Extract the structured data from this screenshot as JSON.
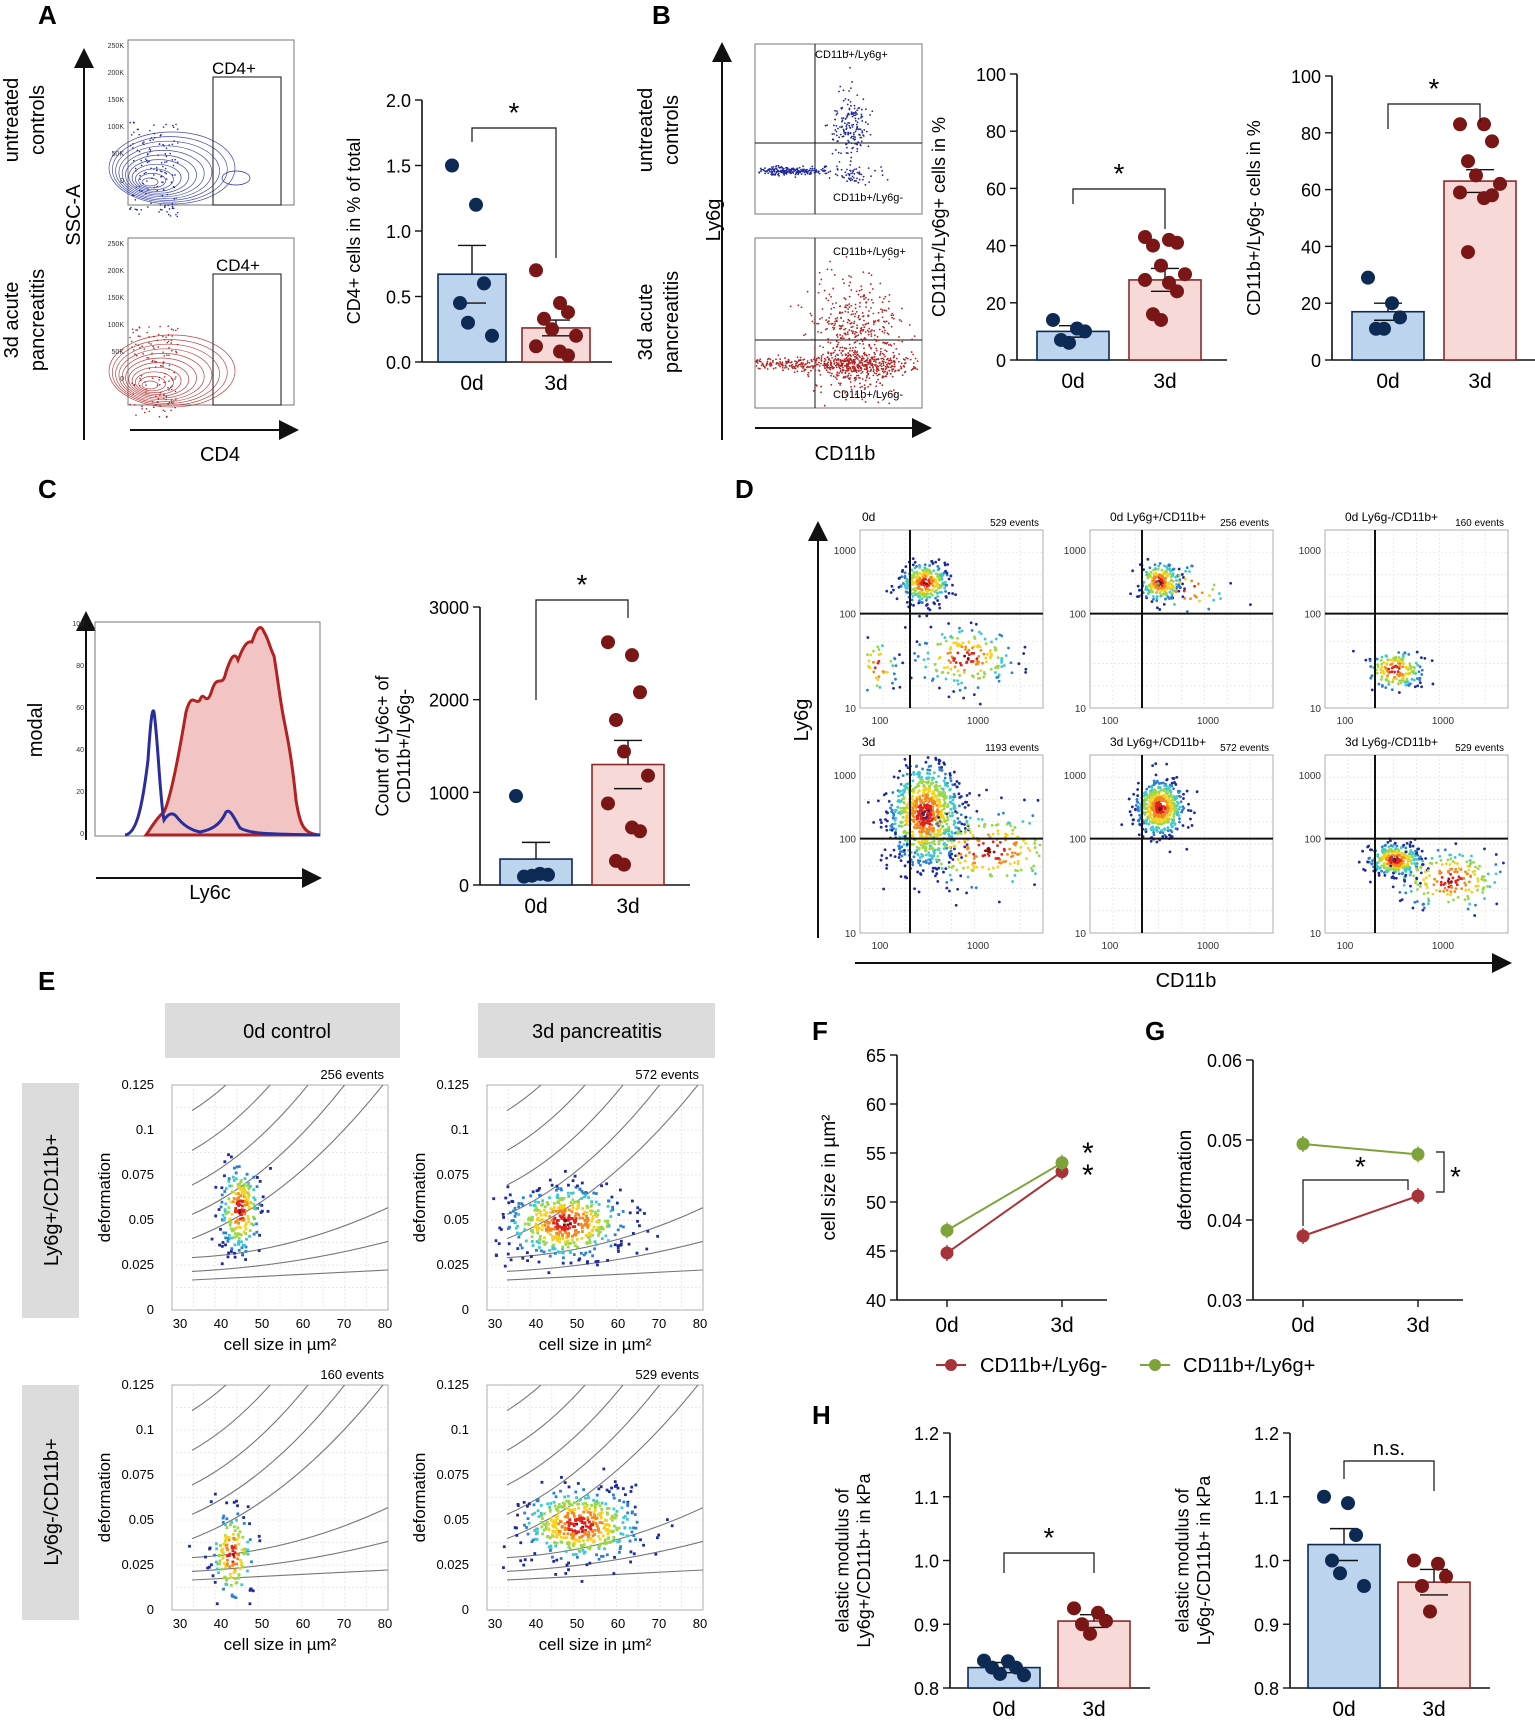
{
  "panels": {
    "A": {
      "letter": "A",
      "row_labels": [
        [
          "untreated",
          "controls"
        ],
        [
          "3d acute",
          "pancreatitis"
        ]
      ],
      "ylabel": "SSC-A",
      "xlabel": "CD4",
      "gate": "CD4+",
      "yticks": [
        "250K",
        "200K",
        "150K",
        "100K",
        "50K",
        "0"
      ]
    },
    "B": {
      "letter": "B",
      "row_labels": [
        [
          "untreated",
          "controls"
        ],
        [
          "3d acute",
          "pancreatitis"
        ]
      ],
      "ylabel": "Ly6g",
      "xlabel": "CD11b",
      "q_upper": "CD11b+/Ly6g+",
      "q_lower": "CD11b+/Ly6g-"
    },
    "C": {
      "letter": "C",
      "ylabel": "modal",
      "xlabel": "Ly6c",
      "yticks": [
        "100",
        "80",
        "60",
        "40",
        "20",
        "0"
      ]
    },
    "D": {
      "letter": "D",
      "ylabel": "Ly6g",
      "xlabel": "CD11b",
      "plots": [
        {
          "title": "0d",
          "events": "529 events"
        },
        {
          "title": "0d Ly6g+/CD11b+",
          "events": "256 events"
        },
        {
          "title": "0d Ly6g-/CD11b+",
          "events": "160 events"
        },
        {
          "title": "3d",
          "events": "1193 events"
        },
        {
          "title": "3d Ly6g+/CD11b+",
          "events": "572 events"
        },
        {
          "title": "3d Ly6g-/CD11b+",
          "events": "529 events"
        }
      ],
      "ticks": [
        "1000",
        "100",
        "10"
      ]
    },
    "E": {
      "letter": "E",
      "col_headers": [
        "0d control",
        "3d pancreatitis"
      ],
      "row_headers": [
        "Ly6g+/CD11b+",
        "Ly6g-/CD11b+"
      ],
      "xlabel": "cell size in µm²",
      "ylabel": "deformation",
      "events": [
        "256 events",
        "572 events",
        "160 events",
        "529 events"
      ],
      "xticks": [
        "30",
        "40",
        "50",
        "60",
        "70",
        "80"
      ],
      "yticks": [
        "0.125",
        "0.1",
        "0.075",
        "0.05",
        "0.025",
        "0"
      ]
    },
    "F": {
      "letter": "F"
    },
    "G": {
      "letter": "G"
    },
    "H": {
      "letter": "H"
    }
  },
  "legend": {
    "ly6g_neg": "CD11b+/Ly6g-",
    "ly6g_pos": "CD11b+/Ly6g+"
  },
  "colors": {
    "blue_fill": "#bcd4ee",
    "blue_dot": "#0d2a55",
    "red_fill": "#f7dad8",
    "red_dot": "#7a1616",
    "bar_edge_red": "#8b2a2a",
    "green": "#7da33a",
    "dark_red": "#a8323a",
    "flow_blue": "#1f2a9c",
    "flow_red": "#b22222"
  },
  "chart_data": [
    {
      "id": "A_bar",
      "type": "bar",
      "title": "",
      "ylabel": "CD4+ cells in % of total",
      "xlabel": "",
      "categories": [
        "0d",
        "3d"
      ],
      "values": [
        0.67,
        0.26
      ],
      "sem": [
        0.22,
        0.06
      ],
      "points": [
        [
          1.5,
          1.2,
          0.6,
          0.45,
          0.3,
          0.2
        ],
        [
          0.7,
          0.45,
          0.38,
          0.33,
          0.25,
          0.2,
          0.12,
          0.08,
          0.05
        ]
      ],
      "ylim": [
        0,
        2.0
      ],
      "yticks": [
        "0.0",
        "0.5",
        "1.0",
        "1.5",
        "2.0"
      ],
      "significance": "*"
    },
    {
      "id": "B_bar1",
      "type": "bar",
      "ylabel": "CD11b+/Ly6g+ cells in %",
      "categories": [
        "0d",
        "3d"
      ],
      "values": [
        10,
        28
      ],
      "sem": [
        2,
        4
      ],
      "points": [
        [
          14,
          11,
          10,
          7,
          6
        ],
        [
          43,
          42,
          41,
          40,
          33,
          30,
          28,
          27,
          24,
          16,
          14
        ]
      ],
      "ylim": [
        0,
        100
      ],
      "yticks": [
        "0",
        "20",
        "40",
        "60",
        "80",
        "100"
      ],
      "significance": "*"
    },
    {
      "id": "B_bar2",
      "type": "bar",
      "ylabel": "CD11b+/Ly6g- cells in %",
      "categories": [
        "0d",
        "3d"
      ],
      "values": [
        17,
        63
      ],
      "sem": [
        3,
        4
      ],
      "points": [
        [
          29,
          20,
          15,
          11,
          11
        ],
        [
          83,
          83,
          77,
          70,
          65,
          62,
          59,
          57,
          58,
          38
        ]
      ],
      "ylim": [
        0,
        100
      ],
      "yticks": [
        "0",
        "20",
        "40",
        "60",
        "80",
        "100"
      ],
      "significance": "*"
    },
    {
      "id": "C_bar",
      "type": "bar",
      "ylabel": "Count of Ly6c+ of CD11b+/Ly6g-",
      "categories": [
        "0d",
        "3d"
      ],
      "values": [
        280,
        1300
      ],
      "sem": [
        180,
        260
      ],
      "points": [
        [
          960,
          120,
          110,
          90,
          100
        ],
        [
          2620,
          2480,
          2080,
          1780,
          1440,
          1180,
          880,
          620,
          580,
          260,
          220
        ]
      ],
      "ylim": [
        0,
        3000
      ],
      "yticks": [
        "0",
        "1000",
        "2000",
        "3000"
      ],
      "significance": "*"
    },
    {
      "id": "F_line",
      "type": "line",
      "ylabel": "cell size in µm²",
      "x": [
        "0d",
        "3d"
      ],
      "series": [
        {
          "name": "CD11b+/Ly6g-",
          "values": [
            44.8,
            53.1
          ]
        },
        {
          "name": "CD11b+/Ly6g+",
          "values": [
            47.1,
            54.0
          ]
        }
      ],
      "ylim": [
        40,
        65
      ],
      "yticks": [
        "40",
        "45",
        "50",
        "55",
        "60",
        "65"
      ],
      "significance": "*"
    },
    {
      "id": "G_line",
      "type": "line",
      "ylabel": "deformation",
      "x": [
        "0d",
        "3d"
      ],
      "series": [
        {
          "name": "CD11b+/Ly6g-",
          "values": [
            0.038,
            0.043
          ]
        },
        {
          "name": "CD11b+/Ly6g+",
          "values": [
            0.0495,
            0.0482
          ]
        }
      ],
      "ylim": [
        0.03,
        0.06
      ],
      "yticks": [
        "0.03",
        "0.04",
        "0.05",
        "0.06"
      ],
      "significance": "*"
    },
    {
      "id": "H_bar1",
      "type": "bar",
      "ylabel": "elastic modulus of Ly6g+/CD11b+ in kPa",
      "categories": [
        "0d",
        "3d"
      ],
      "values": [
        0.832,
        0.905
      ],
      "sem": [
        0.008,
        0.01
      ],
      "points": [
        [
          0.843,
          0.842,
          0.832,
          0.832,
          0.822,
          0.82
        ],
        [
          0.925,
          0.918,
          0.905,
          0.9,
          0.885
        ]
      ],
      "ylim": [
        0.8,
        1.2
      ],
      "yticks": [
        "0.8",
        "0.9",
        "1.0",
        "1.1",
        "1.2"
      ],
      "significance": "*"
    },
    {
      "id": "H_bar2",
      "type": "bar",
      "ylabel": "elastic modulus of Ly6g-/CD11b+ in kPa",
      "categories": [
        "0d",
        "3d"
      ],
      "values": [
        1.025,
        0.966
      ],
      "sem": [
        0.025,
        0.02
      ],
      "points": [
        [
          1.1,
          1.09,
          1.04,
          1.0,
          0.98,
          0.96
        ],
        [
          1.0,
          0.995,
          0.975,
          0.96,
          0.92
        ]
      ],
      "ylim": [
        0.8,
        1.2
      ],
      "yticks": [
        "0.8",
        "0.9",
        "1.0",
        "1.1",
        "1.2"
      ],
      "significance": "n.s."
    }
  ]
}
